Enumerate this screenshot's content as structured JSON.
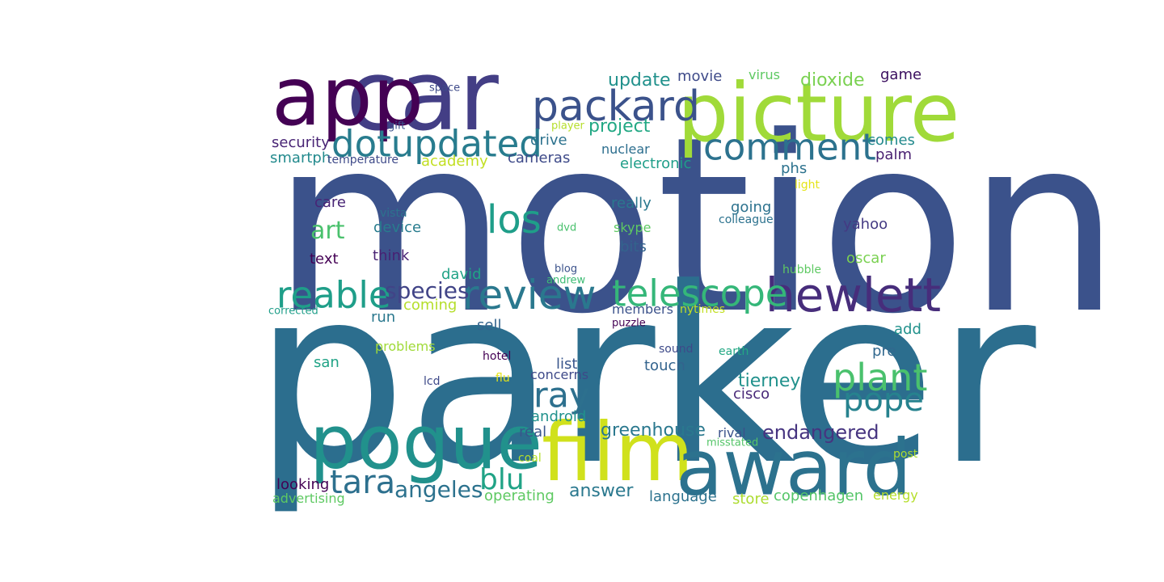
{
  "words": [
    {
      "text": "motion",
      "color": "#3b528b"
    },
    {
      "text": "parker",
      "color": "#2c6e8e"
    },
    {
      "text": "car",
      "color": "#433e85"
    },
    {
      "text": "app",
      "color": "#440154"
    },
    {
      "text": "picture",
      "color": "#a0da39"
    },
    {
      "text": "film",
      "color": "#d0e11c"
    },
    {
      "text": "award",
      "color": "#2c728e"
    },
    {
      "text": "pogue",
      "color": "#21918c"
    },
    {
      "text": "hewlett",
      "color": "#472d7b"
    },
    {
      "text": "packard",
      "color": "#3b528b"
    },
    {
      "text": "comment",
      "color": "#2c728e"
    },
    {
      "text": "dotupdated",
      "color": "#287c8e"
    },
    {
      "text": "los",
      "color": "#1f9e89"
    },
    {
      "text": "review",
      "color": "#2a788e"
    },
    {
      "text": "reable",
      "color": "#1f9e89"
    },
    {
      "text": "telescope",
      "color": "#35b779"
    },
    {
      "text": "plant",
      "color": "#4ac16d"
    },
    {
      "text": "pope",
      "color": "#26828e"
    },
    {
      "text": "ray",
      "color": "#2d708e"
    },
    {
      "text": "tara",
      "color": "#2d708e"
    },
    {
      "text": "blu",
      "color": "#20a386"
    },
    {
      "text": "angeles",
      "color": "#2c728e"
    },
    {
      "text": "species",
      "color": "#414487"
    },
    {
      "text": "art",
      "color": "#4ac16d"
    },
    {
      "text": "update",
      "color": "#21918c"
    },
    {
      "text": "project",
      "color": "#22a884"
    },
    {
      "text": "dioxide",
      "color": "#7ad151"
    },
    {
      "text": "movie",
      "color": "#3e4a89"
    },
    {
      "text": "virus",
      "color": "#5ec962"
    },
    {
      "text": "game",
      "color": "#3a0e5f"
    },
    {
      "text": "space",
      "color": "#3e4a89"
    },
    {
      "text": "gift",
      "color": "#3b528b"
    },
    {
      "text": "player",
      "color": "#b5de2b"
    },
    {
      "text": "drive",
      "color": "#2c728e"
    },
    {
      "text": "cameras",
      "color": "#3e4a89"
    },
    {
      "text": "nuclear",
      "color": "#2c6e8e"
    },
    {
      "text": "electronic",
      "color": "#1f9e89"
    },
    {
      "text": "comes",
      "color": "#238a8d"
    },
    {
      "text": "palm",
      "color": "#481f70"
    },
    {
      "text": "security",
      "color": "#482475"
    },
    {
      "text": "smartph",
      "color": "#238a8d"
    },
    {
      "text": "temperature",
      "color": "#3e4a89"
    },
    {
      "text": "academy",
      "color": "#c2df23"
    },
    {
      "text": "phs",
      "color": "#2c728e"
    },
    {
      "text": "light",
      "color": "#e5e419"
    },
    {
      "text": "care",
      "color": "#482576"
    },
    {
      "text": "vista",
      "color": "#2c728e"
    },
    {
      "text": "device",
      "color": "#287c8e"
    },
    {
      "text": "dvd",
      "color": "#4ac16d"
    },
    {
      "text": "really",
      "color": "#2a788e"
    },
    {
      "text": "going",
      "color": "#2c728e"
    },
    {
      "text": "colleague",
      "color": "#2c728e"
    },
    {
      "text": "yahoo",
      "color": "#443a83"
    },
    {
      "text": "skype",
      "color": "#5ec962"
    },
    {
      "text": "bits",
      "color": "#33638d"
    },
    {
      "text": "text",
      "color": "#440154"
    },
    {
      "text": "think",
      "color": "#482173"
    },
    {
      "text": "blog",
      "color": "#3b528b"
    },
    {
      "text": "david",
      "color": "#20a386"
    },
    {
      "text": "andrew",
      "color": "#3dbc74"
    },
    {
      "text": "hubble",
      "color": "#5ec962"
    },
    {
      "text": "oscar",
      "color": "#7ad151"
    },
    {
      "text": "corrected",
      "color": "#1f9e89"
    },
    {
      "text": "coming",
      "color": "#b5de2b"
    },
    {
      "text": "members",
      "color": "#3b528b"
    },
    {
      "text": "nytimes",
      "color": "#c2df23"
    },
    {
      "text": "run",
      "color": "#2a788e"
    },
    {
      "text": "sell",
      "color": "#33638d"
    },
    {
      "text": "puzzle",
      "color": "#440154"
    },
    {
      "text": "add",
      "color": "#21918c"
    },
    {
      "text": "problems",
      "color": "#a0da39"
    },
    {
      "text": "sound",
      "color": "#3e4a89"
    },
    {
      "text": "earth",
      "color": "#22a884"
    },
    {
      "text": "pre",
      "color": "#31688e"
    },
    {
      "text": "hotel",
      "color": "#440154"
    },
    {
      "text": "san",
      "color": "#20a386"
    },
    {
      "text": "list",
      "color": "#39568c"
    },
    {
      "text": "touch",
      "color": "#33638d"
    },
    {
      "text": "concerns",
      "color": "#3e4a89"
    },
    {
      "text": "lcd",
      "color": "#3e4a89"
    },
    {
      "text": "flu",
      "color": "#e5e419"
    },
    {
      "text": "tierney",
      "color": "#21918c"
    },
    {
      "text": "cisco",
      "color": "#482878"
    },
    {
      "text": "android",
      "color": "#21918c"
    },
    {
      "text": "greenhouse",
      "color": "#2a788e"
    },
    {
      "text": "endangered",
      "color": "#463480"
    },
    {
      "text": "real",
      "color": "#39568c"
    },
    {
      "text": "rival",
      "color": "#3b528b"
    },
    {
      "text": "misstated",
      "color": "#54c568"
    },
    {
      "text": "coal",
      "color": "#b5de2b"
    },
    {
      "text": "post",
      "color": "#addc30"
    },
    {
      "text": "looking",
      "color": "#440154"
    },
    {
      "text": "answer",
      "color": "#2a788e"
    },
    {
      "text": "language",
      "color": "#2c728e"
    },
    {
      "text": "store",
      "color": "#addc30"
    },
    {
      "text": "copenhagen",
      "color": "#54c568"
    },
    {
      "text": "energy",
      "color": "#b5de2b"
    },
    {
      "text": "advertising",
      "color": "#5ec962"
    },
    {
      "text": "operating",
      "color": "#5ec962"
    }
  ]
}
